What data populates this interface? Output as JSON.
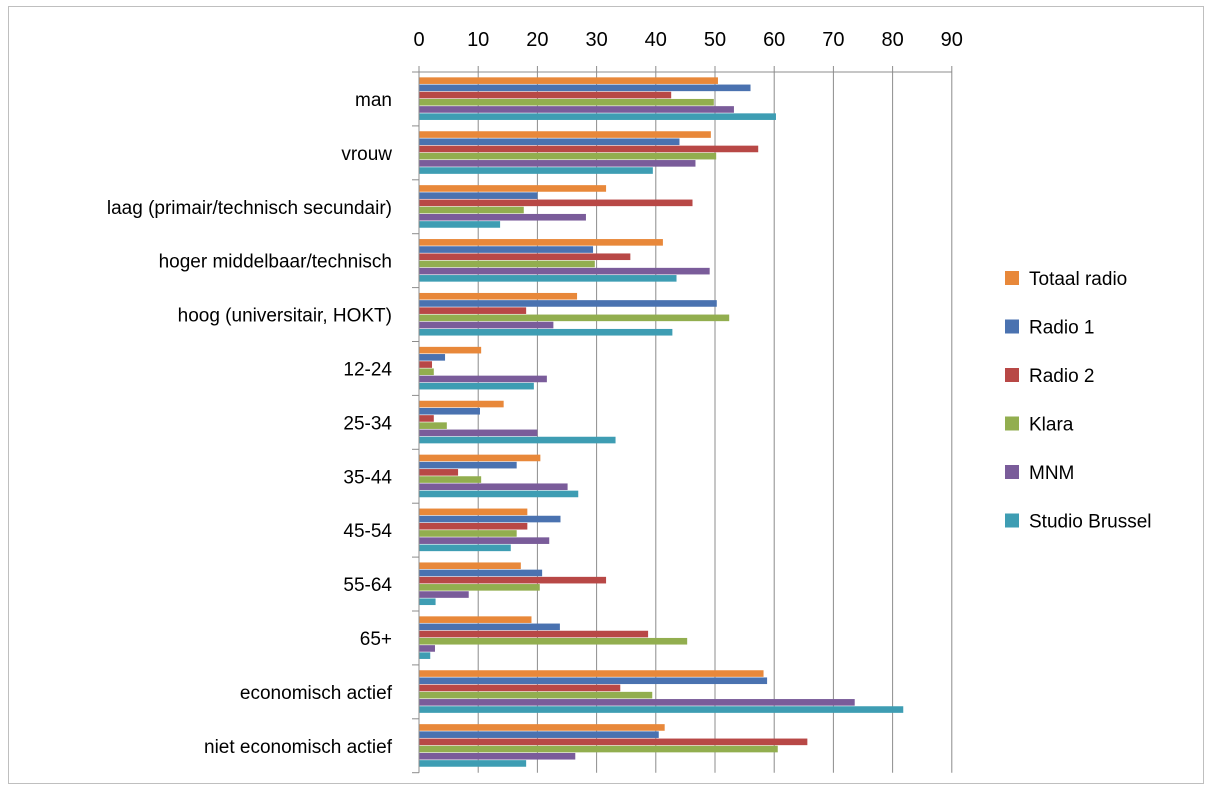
{
  "chart_data": {
    "type": "bar",
    "orientation": "horizontal",
    "xlim": [
      0,
      90
    ],
    "xticks": [
      "0",
      "10",
      "20",
      "30",
      "40",
      "50",
      "60",
      "70",
      "80",
      "90"
    ],
    "grid": true,
    "legend_position": "right",
    "categories": [
      "man",
      "vrouw",
      "laag (primair/technisch secundair)",
      "hoger middelbaar/technisch",
      "hoog (universitair, HOKT)",
      "12-24",
      "25-34",
      "35-44",
      "45-54",
      "55-64",
      "65+",
      "economisch actief",
      "niet economisch actief"
    ],
    "series": [
      {
        "name": "Totaal radio",
        "color": "#E8883A",
        "values": [
          50.5,
          49.3,
          31.6,
          41.2,
          26.7,
          10.5,
          14.3,
          20.5,
          18.3,
          17.2,
          19.0,
          58.2,
          41.5
        ]
      },
      {
        "name": "Radio 1",
        "color": "#4A72B0",
        "values": [
          56.0,
          44.0,
          20.0,
          29.4,
          50.3,
          4.4,
          10.3,
          16.5,
          23.9,
          20.8,
          23.8,
          58.8,
          40.5
        ]
      },
      {
        "name": "Radio 2",
        "color": "#B84846",
        "values": [
          42.6,
          57.3,
          46.2,
          35.7,
          18.1,
          2.2,
          2.5,
          6.6,
          18.3,
          31.6,
          38.7,
          34.0,
          65.6
        ]
      },
      {
        "name": "Klara",
        "color": "#92AE4F",
        "values": [
          49.8,
          50.2,
          17.7,
          29.7,
          52.4,
          2.5,
          4.7,
          10.5,
          16.5,
          20.4,
          45.3,
          39.4,
          60.6
        ]
      },
      {
        "name": "MNM",
        "color": "#7A5C9A",
        "values": [
          53.2,
          46.7,
          28.2,
          49.1,
          22.7,
          21.6,
          20.0,
          25.1,
          22.0,
          8.4,
          2.7,
          73.6,
          26.4
        ]
      },
      {
        "name": "Studio Brussel",
        "color": "#3E9DB3",
        "values": [
          60.3,
          39.5,
          13.7,
          43.5,
          42.8,
          19.4,
          33.2,
          26.9,
          15.5,
          2.8,
          1.9,
          81.8,
          18.1
        ]
      }
    ]
  }
}
